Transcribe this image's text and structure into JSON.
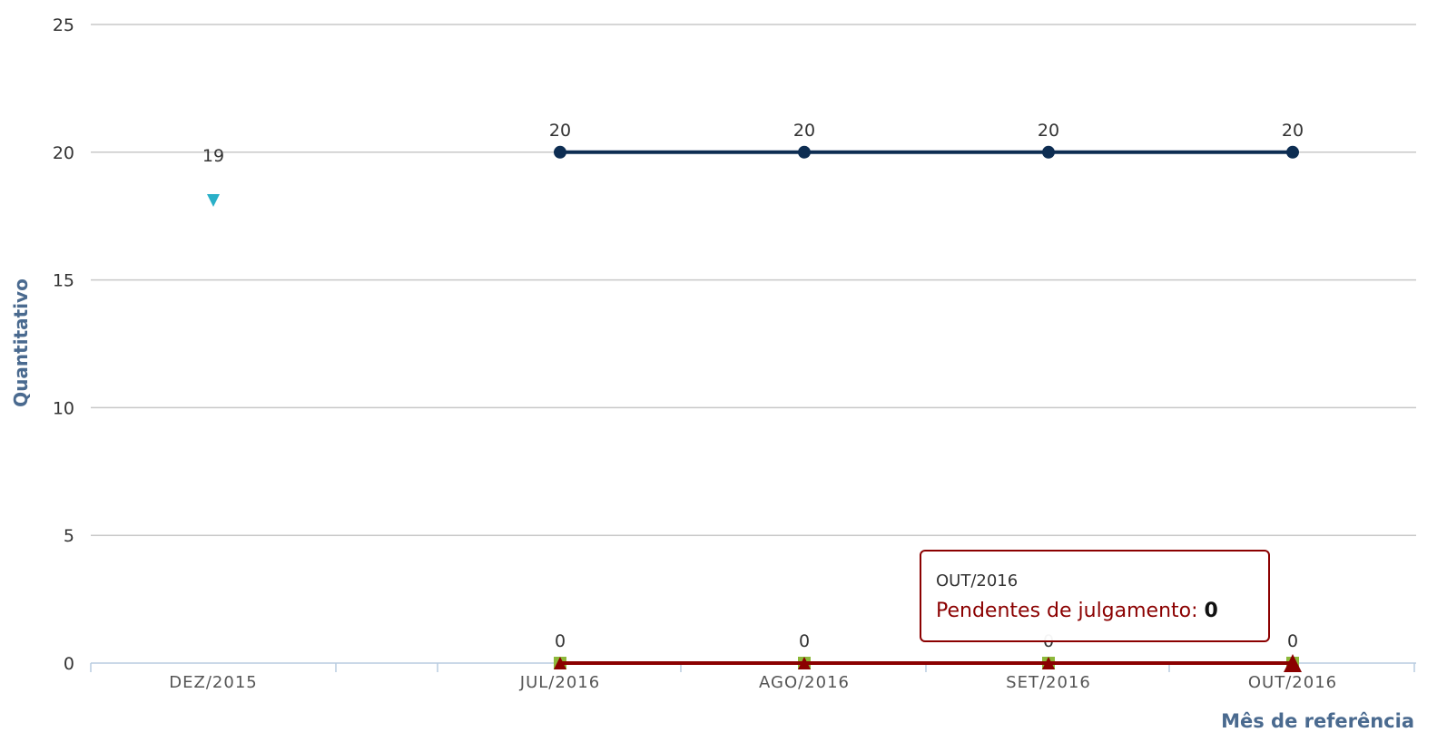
{
  "chart_data": {
    "type": "line",
    "categories": [
      "DEZ/2015",
      "JUL/2016",
      "AGO/2016",
      "SET/2016",
      "OUT/2016"
    ],
    "y_label": "Quantitativo",
    "x_label": "Mês de referência",
    "ylim": [
      0,
      25
    ],
    "yticks": [
      0,
      5,
      10,
      15,
      20,
      25
    ],
    "grid": true,
    "series": [
      {
        "color": "#0d2d52",
        "marker": "circle",
        "show_labels": true,
        "values": [
          null,
          20,
          20,
          20,
          20
        ]
      },
      {
        "color": "#2ab0c8",
        "marker": "triangle-down",
        "show_labels": true,
        "values": [
          19,
          null,
          null,
          null,
          null
        ]
      },
      {
        "color": "#8db83a",
        "marker": "square",
        "show_labels": true,
        "values": [
          null,
          0,
          0,
          0,
          0
        ]
      },
      {
        "name": "Pendentes de julgamento",
        "color": "#8b0000",
        "marker": "triangle",
        "show_labels": false,
        "values": [
          null,
          0,
          0,
          0,
          0
        ]
      }
    ],
    "tooltip": {
      "category_index": 4,
      "series_index": 3
    }
  }
}
